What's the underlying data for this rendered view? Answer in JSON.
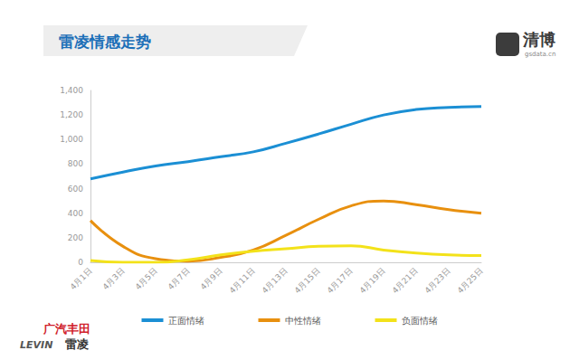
{
  "chart_data": {
    "type": "line",
    "title": "雷凌情感走势",
    "categories": [
      "4月1日",
      "4月3日",
      "4月5日",
      "4月7日",
      "4月9日",
      "4月11日",
      "4月13日",
      "4月15日",
      "4月17日",
      "4月19日",
      "4月21日",
      "4月23日",
      "4月25日"
    ],
    "series": [
      {
        "name": "正面情绪",
        "color": "#1b8fd4",
        "values": [
          680,
          735,
          785,
          820,
          860,
          900,
          970,
          1045,
          1125,
          1200,
          1245,
          1262,
          1270
        ]
      },
      {
        "name": "中性情绪",
        "color": "#e8900f",
        "values": [
          340,
          130,
          30,
          10,
          40,
          100,
          220,
          350,
          460,
          500,
          470,
          430,
          400
        ]
      },
      {
        "name": "负面情绪",
        "color": "#f3e21a",
        "values": [
          15,
          0,
          0,
          20,
          60,
          90,
          110,
          130,
          135,
          100,
          75,
          60,
          55
        ]
      }
    ],
    "ylim": [
      0,
      1400
    ],
    "yticks": [
      0,
      200,
      400,
      600,
      800,
      1000,
      1200,
      1400
    ],
    "grid": false,
    "legend": "bottom",
    "marker": "none",
    "line_style": "smooth",
    "annotations": [
      "清博",
      "gsdata.cn",
      "广汽丰田",
      "LEVIN",
      "雷凌"
    ]
  }
}
